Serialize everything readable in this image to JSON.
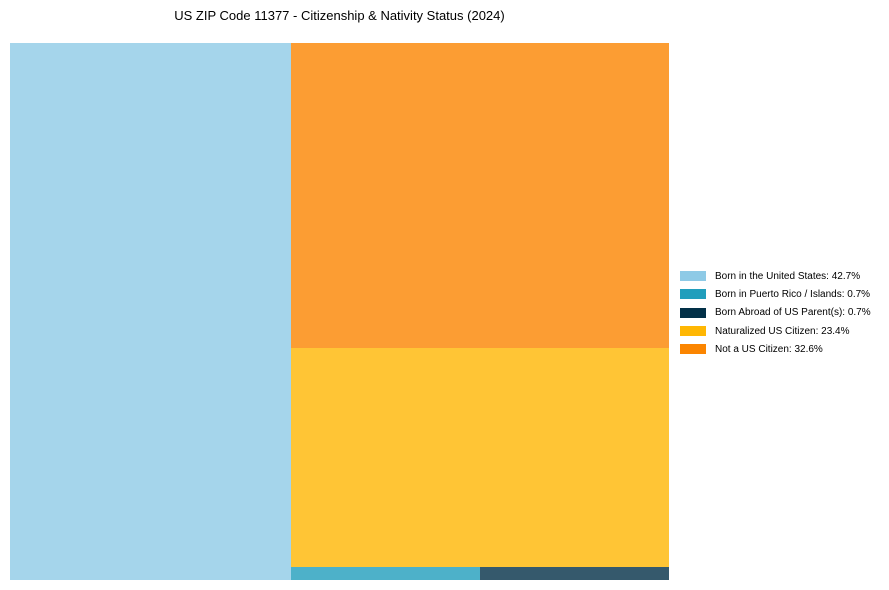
{
  "chart_data": {
    "type": "treemap",
    "title": "US ZIP Code 11377 - Citizenship & Nativity Status (2024)",
    "categories": [
      "Born in the United States",
      "Born in Puerto Rico / Islands",
      "Born Abroad of US Parent(s)",
      "Naturalized US Citizen",
      "Not a US Citizen"
    ],
    "values": [
      42.7,
      0.7,
      0.7,
      23.4,
      32.6
    ],
    "colors": [
      "#8ecae6",
      "#219ebc",
      "#023047",
      "#ffb703",
      "#fb8500"
    ],
    "legend_labels": [
      "Born in the United States: 42.7%",
      "Born in Puerto Rico / Islands: 0.7%",
      "Born Abroad of US Parent(s): 0.7%",
      "Naturalized US Citizen: 23.4%",
      "Not a US Citizen: 32.6%"
    ],
    "legend_position": "right"
  }
}
